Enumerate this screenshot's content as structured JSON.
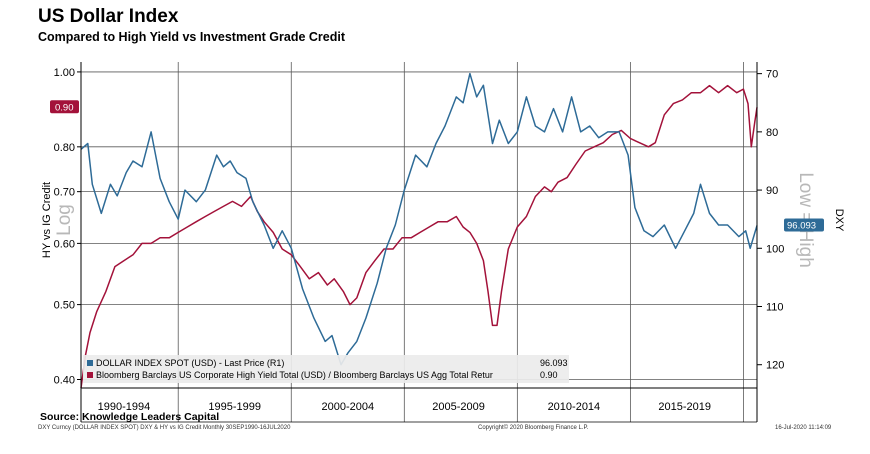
{
  "header": {
    "title": "US Dollar Index",
    "subtitle": "Compared to High Yield vs Investment Grade Credit"
  },
  "footer": {
    "source": "Source: Knowledge Leaders Capital",
    "left_note": "DXY Curncy (DOLLAR INDEX SPOT) DXY & HY vs IG Credit  Monthly 30SEP1990-16JUL2020",
    "center_note": "Copyright© 2020 Bloomberg Finance L.P.",
    "right_note": "16-Jul-2020 11:14:09"
  },
  "colors": {
    "dxy": "#2e6b97",
    "ratio": "#a3123a",
    "grid": "#5a5a5a"
  },
  "chart_data": {
    "type": "line",
    "title": "US Dollar Index",
    "subtitle": "Compared to High Yield vs Investment Grade Credit",
    "x_range": [
      1990.7,
      2020.6
    ],
    "x_period_labels": [
      {
        "label": "1990-1994",
        "center": 1992.6
      },
      {
        "label": "1995-1999",
        "center": 1997.5
      },
      {
        "label": "2000-2004",
        "center": 2002.5
      },
      {
        "label": "2005-2009",
        "center": 2007.4
      },
      {
        "label": "2010-2014",
        "center": 2012.5
      },
      {
        "label": "2015-2019",
        "center": 2017.4
      }
    ],
    "x_gridlines": [
      1995,
      2000,
      2005,
      2010,
      2015,
      2020
    ],
    "left_axis": {
      "label": "HY vs IG Credit",
      "ghost_label": "Log",
      "scale": "log",
      "range": [
        0.39,
        1.03
      ],
      "ticks": [
        {
          "value": 0.4,
          "label": "0.40"
        },
        {
          "value": 0.5,
          "label": "0.50"
        },
        {
          "value": 0.6,
          "label": "0.60"
        },
        {
          "value": 0.7,
          "label": "0.70"
        },
        {
          "value": 0.8,
          "label": "0.80"
        },
        {
          "value": 1.0,
          "label": "1.00"
        }
      ]
    },
    "right_axis": {
      "label": "DXY",
      "ghost_label": "Low = High",
      "inverted": true,
      "range": [
        68,
        124
      ],
      "ticks": [
        {
          "value": 70,
          "label": "70"
        },
        {
          "value": 80,
          "label": "80"
        },
        {
          "value": 90,
          "label": "90"
        },
        {
          "value": 100,
          "label": "100"
        },
        {
          "value": 110,
          "label": "110"
        },
        {
          "value": 120,
          "label": "120"
        }
      ]
    },
    "series": [
      {
        "name": "DOLLAR INDEX SPOT (USD) - Last Price (R1)",
        "last_value": "96.093",
        "axis": "right",
        "points": [
          [
            1990.7,
            83
          ],
          [
            1991.0,
            82
          ],
          [
            1991.2,
            89
          ],
          [
            1991.6,
            94
          ],
          [
            1992.0,
            89
          ],
          [
            1992.3,
            91
          ],
          [
            1992.7,
            87
          ],
          [
            1993.0,
            85
          ],
          [
            1993.4,
            86
          ],
          [
            1993.8,
            80
          ],
          [
            1994.2,
            88
          ],
          [
            1994.6,
            92
          ],
          [
            1995.0,
            95
          ],
          [
            1995.3,
            90
          ],
          [
            1995.8,
            92
          ],
          [
            1996.2,
            90
          ],
          [
            1996.7,
            84
          ],
          [
            1997.0,
            86
          ],
          [
            1997.3,
            85
          ],
          [
            1997.6,
            87
          ],
          [
            1998.0,
            88
          ],
          [
            1998.3,
            92
          ],
          [
            1998.8,
            96
          ],
          [
            1999.2,
            100
          ],
          [
            1999.6,
            97
          ],
          [
            2000.0,
            100
          ],
          [
            2000.5,
            107
          ],
          [
            2001.0,
            112
          ],
          [
            2001.5,
            116
          ],
          [
            2001.8,
            115
          ],
          [
            2002.2,
            120
          ],
          [
            2002.5,
            118
          ],
          [
            2002.9,
            116
          ],
          [
            2003.3,
            112
          ],
          [
            2003.8,
            106
          ],
          [
            2004.2,
            100
          ],
          [
            2004.6,
            96
          ],
          [
            2005.0,
            90
          ],
          [
            2005.5,
            84
          ],
          [
            2006.0,
            86
          ],
          [
            2006.4,
            82
          ],
          [
            2006.8,
            79
          ],
          [
            2007.3,
            74
          ],
          [
            2007.6,
            75
          ],
          [
            2007.9,
            70
          ],
          [
            2008.2,
            74
          ],
          [
            2008.5,
            72
          ],
          [
            2008.9,
            82
          ],
          [
            2009.2,
            78
          ],
          [
            2009.6,
            82
          ],
          [
            2010.0,
            80
          ],
          [
            2010.4,
            74
          ],
          [
            2010.8,
            79
          ],
          [
            2011.2,
            80
          ],
          [
            2011.6,
            76
          ],
          [
            2012.0,
            80
          ],
          [
            2012.4,
            74
          ],
          [
            2012.8,
            80
          ],
          [
            2013.2,
            79
          ],
          [
            2013.6,
            81
          ],
          [
            2014.0,
            80
          ],
          [
            2014.5,
            80
          ],
          [
            2014.9,
            84
          ],
          [
            2015.2,
            93
          ],
          [
            2015.6,
            97
          ],
          [
            2016.0,
            98
          ],
          [
            2016.5,
            96
          ],
          [
            2017.0,
            100
          ],
          [
            2017.4,
            97
          ],
          [
            2017.8,
            94
          ],
          [
            2018.1,
            89
          ],
          [
            2018.5,
            94
          ],
          [
            2018.9,
            96
          ],
          [
            2019.3,
            96
          ],
          [
            2019.8,
            98
          ],
          [
            2020.1,
            97
          ],
          [
            2020.3,
            100
          ],
          [
            2020.6,
            96.093
          ]
        ]
      },
      {
        "name": "Bloomberg Barclays US Corporate High Yield Total (USD) / Bloomberg Barclays US Agg Total Retur",
        "last_value": "0.90",
        "axis": "left",
        "points": [
          [
            1990.7,
            0.39
          ],
          [
            1990.9,
            0.43
          ],
          [
            1991.1,
            0.46
          ],
          [
            1991.4,
            0.49
          ],
          [
            1991.8,
            0.52
          ],
          [
            1992.2,
            0.56
          ],
          [
            1992.6,
            0.57
          ],
          [
            1993.0,
            0.58
          ],
          [
            1993.4,
            0.6
          ],
          [
            1993.8,
            0.6
          ],
          [
            1994.2,
            0.61
          ],
          [
            1994.6,
            0.61
          ],
          [
            1995.0,
            0.62
          ],
          [
            1995.4,
            0.63
          ],
          [
            1995.8,
            0.64
          ],
          [
            1996.2,
            0.65
          ],
          [
            1996.6,
            0.66
          ],
          [
            1997.0,
            0.67
          ],
          [
            1997.4,
            0.68
          ],
          [
            1997.8,
            0.67
          ],
          [
            1998.2,
            0.69
          ],
          [
            1998.5,
            0.66
          ],
          [
            1998.8,
            0.64
          ],
          [
            1999.2,
            0.62
          ],
          [
            1999.6,
            0.59
          ],
          [
            2000.0,
            0.58
          ],
          [
            2000.4,
            0.56
          ],
          [
            2000.8,
            0.54
          ],
          [
            2001.2,
            0.55
          ],
          [
            2001.6,
            0.53
          ],
          [
            2001.9,
            0.54
          ],
          [
            2002.3,
            0.52
          ],
          [
            2002.6,
            0.5
          ],
          [
            2002.9,
            0.51
          ],
          [
            2003.3,
            0.55
          ],
          [
            2003.7,
            0.57
          ],
          [
            2004.1,
            0.59
          ],
          [
            2004.5,
            0.59
          ],
          [
            2004.9,
            0.61
          ],
          [
            2005.3,
            0.61
          ],
          [
            2005.7,
            0.62
          ],
          [
            2006.1,
            0.63
          ],
          [
            2006.5,
            0.64
          ],
          [
            2006.9,
            0.64
          ],
          [
            2007.3,
            0.65
          ],
          [
            2007.6,
            0.63
          ],
          [
            2007.9,
            0.62
          ],
          [
            2008.2,
            0.6
          ],
          [
            2008.5,
            0.57
          ],
          [
            2008.7,
            0.52
          ],
          [
            2008.9,
            0.47
          ],
          [
            2009.1,
            0.47
          ],
          [
            2009.3,
            0.52
          ],
          [
            2009.6,
            0.59
          ],
          [
            2010.0,
            0.63
          ],
          [
            2010.4,
            0.65
          ],
          [
            2010.8,
            0.69
          ],
          [
            2011.2,
            0.71
          ],
          [
            2011.5,
            0.7
          ],
          [
            2011.8,
            0.72
          ],
          [
            2012.2,
            0.73
          ],
          [
            2012.6,
            0.76
          ],
          [
            2013.0,
            0.79
          ],
          [
            2013.4,
            0.8
          ],
          [
            2013.8,
            0.81
          ],
          [
            2014.2,
            0.83
          ],
          [
            2014.6,
            0.84
          ],
          [
            2015.0,
            0.82
          ],
          [
            2015.4,
            0.81
          ],
          [
            2015.8,
            0.8
          ],
          [
            2016.1,
            0.81
          ],
          [
            2016.5,
            0.88
          ],
          [
            2016.9,
            0.91
          ],
          [
            2017.3,
            0.92
          ],
          [
            2017.7,
            0.94
          ],
          [
            2018.1,
            0.94
          ],
          [
            2018.5,
            0.96
          ],
          [
            2018.9,
            0.94
          ],
          [
            2019.3,
            0.96
          ],
          [
            2019.7,
            0.94
          ],
          [
            2020.0,
            0.95
          ],
          [
            2020.2,
            0.91
          ],
          [
            2020.35,
            0.8
          ],
          [
            2020.5,
            0.86
          ],
          [
            2020.6,
            0.9
          ]
        ]
      }
    ],
    "legend": [
      {
        "label": "DOLLAR INDEX SPOT (USD) - Last Price (R1)",
        "value": "96.093"
      },
      {
        "label": "Bloomberg Barclays US Corporate High Yield Total (USD) / Bloomberg Barclays US Agg Total Retur",
        "value": "0.90"
      }
    ],
    "legend_position": "bottom-left"
  }
}
